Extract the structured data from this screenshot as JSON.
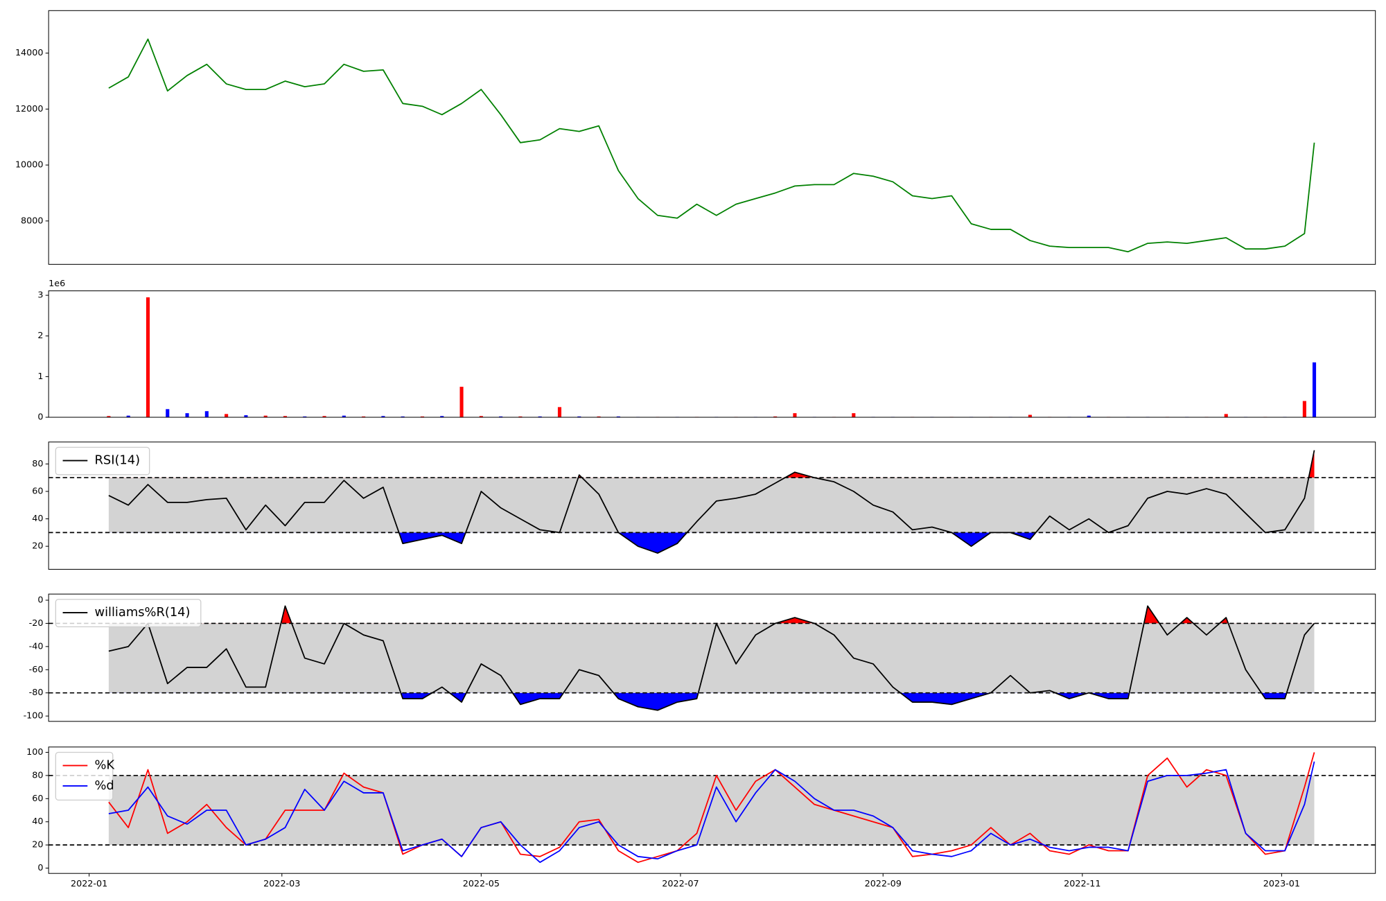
{
  "chart_data": [
    {
      "type": "line",
      "xlim": [
        -12.4,
        393.7
      ],
      "ylim": [
        6450,
        15520
      ],
      "yticks": [
        8000,
        10000,
        12000,
        14000
      ],
      "color": "green",
      "x": [
        6,
        12,
        18,
        24,
        30,
        36,
        42,
        48,
        54,
        60,
        66,
        72,
        78,
        84,
        90,
        96,
        102,
        108,
        114,
        120,
        126,
        132,
        138,
        144,
        150,
        156,
        162,
        168,
        174,
        180,
        186,
        192,
        198,
        204,
        210,
        216,
        222,
        228,
        234,
        240,
        246,
        252,
        258,
        264,
        270,
        276,
        282,
        288,
        294,
        300,
        306,
        312,
        318,
        324,
        330,
        336,
        342,
        348,
        354,
        360,
        366,
        372,
        375
      ],
      "values": [
        12750,
        13150,
        14500,
        12650,
        13200,
        13600,
        12900,
        12700,
        12700,
        13000,
        12800,
        12900,
        13600,
        13350,
        13400,
        12200,
        12100,
        11800,
        12200,
        12700,
        11800,
        10800,
        10900,
        11300,
        11200,
        11400,
        9800,
        8800,
        8200,
        8100,
        8600,
        8200,
        8600,
        8800,
        9000,
        9250,
        9300,
        9300,
        9700,
        9600,
        9400,
        8900,
        8800,
        8900,
        7900,
        7700,
        7700,
        7300,
        7100,
        7050,
        7050,
        7050,
        6900,
        7200,
        7250,
        7200,
        7300,
        7400,
        7000,
        7000,
        7100,
        7550,
        10800
      ]
    },
    {
      "type": "bar",
      "xlim": [
        -12.4,
        393.7
      ],
      "ylim": [
        0,
        3.11
      ],
      "yticks": [
        0,
        1,
        2,
        3
      ],
      "offset_label": "1e6",
      "x": [
        6,
        12,
        18,
        24,
        30,
        36,
        42,
        48,
        54,
        60,
        66,
        72,
        78,
        84,
        90,
        96,
        102,
        108,
        114,
        120,
        126,
        132,
        138,
        144,
        150,
        156,
        162,
        168,
        174,
        180,
        186,
        192,
        198,
        204,
        210,
        216,
        222,
        228,
        234,
        240,
        246,
        252,
        258,
        264,
        270,
        276,
        282,
        288,
        294,
        300,
        306,
        312,
        318,
        324,
        330,
        336,
        342,
        348,
        354,
        360,
        366,
        372,
        375
      ],
      "values": [
        0.03,
        0.04,
        2.95,
        0.2,
        0.1,
        0.15,
        0.08,
        0.05,
        0.04,
        0.03,
        0.02,
        0.03,
        0.04,
        0.02,
        0.03,
        0.02,
        0.02,
        0.03,
        0.75,
        0.03,
        0.02,
        0.02,
        0.02,
        0.25,
        0.02,
        0.02,
        0.02,
        0.01,
        0.01,
        0.01,
        0.01,
        0.01,
        0.01,
        0.01,
        0.02,
        0.1,
        0.01,
        0.01,
        0.1,
        0.01,
        0.01,
        0.01,
        0.01,
        0.01,
        0.01,
        0.01,
        0.01,
        0.06,
        0.01,
        0.01,
        0.04,
        0.01,
        0.01,
        0.01,
        0.01,
        0.01,
        0.01,
        0.08,
        0.01,
        0.01,
        0.01,
        0.4,
        1.35
      ],
      "colors": [
        "red",
        "blue",
        "red",
        "blue",
        "blue",
        "blue",
        "red",
        "blue",
        "red",
        "red",
        "blue",
        "red",
        "blue",
        "red",
        "blue",
        "blue",
        "red",
        "blue",
        "red",
        "red",
        "blue",
        "red",
        "blue",
        "red",
        "blue",
        "red",
        "blue",
        "blue",
        "red",
        "blue",
        "red",
        "blue",
        "red",
        "blue",
        "red",
        "red",
        "blue",
        "red",
        "red",
        "blue",
        "blue",
        "red",
        "blue",
        "red",
        "blue",
        "red",
        "blue",
        "red",
        "red",
        "blue",
        "blue",
        "red",
        "blue",
        "blue",
        "red",
        "blue",
        "red",
        "red",
        "blue",
        "red",
        "blue",
        "red",
        "blue"
      ]
    },
    {
      "type": "line",
      "xlim": [
        -12.4,
        393.7
      ],
      "ylim": [
        3.2,
        96
      ],
      "yticks": [
        20,
        40,
        60,
        80
      ],
      "thresholds": [
        30,
        70
      ],
      "band_color": "lightgray",
      "overbought_color": "red",
      "oversold_color": "blue",
      "legend": "upper left",
      "x": [
        6,
        12,
        18,
        24,
        30,
        36,
        42,
        48,
        54,
        60,
        66,
        72,
        78,
        84,
        90,
        96,
        102,
        108,
        114,
        120,
        126,
        132,
        138,
        144,
        150,
        156,
        162,
        168,
        174,
        180,
        186,
        192,
        198,
        204,
        210,
        216,
        222,
        228,
        234,
        240,
        246,
        252,
        258,
        264,
        270,
        276,
        282,
        288,
        294,
        300,
        306,
        312,
        318,
        324,
        330,
        336,
        342,
        348,
        354,
        360,
        366,
        372,
        375
      ],
      "series": [
        {
          "name": "RSI(14)",
          "color": "black",
          "values": [
            57,
            50,
            65,
            52,
            52,
            54,
            55,
            32,
            50,
            35,
            52,
            52,
            68,
            55,
            63,
            22,
            25,
            28,
            22,
            60,
            48,
            40,
            32,
            30,
            72,
            58,
            30,
            20,
            15,
            22,
            38,
            53,
            55,
            58,
            66,
            74,
            70,
            67,
            60,
            50,
            45,
            32,
            34,
            30,
            20,
            30,
            30,
            25,
            42,
            32,
            40,
            30,
            35,
            55,
            60,
            58,
            62,
            58,
            44,
            30,
            32,
            55,
            90
          ]
        }
      ]
    },
    {
      "type": "line",
      "xlim": [
        -12.4,
        393.7
      ],
      "ylim": [
        -104.6,
        5.3
      ],
      "yticks": [
        -100,
        -80,
        -60,
        -40,
        -20,
        0
      ],
      "thresholds": [
        -80,
        -20
      ],
      "band_color": "lightgray",
      "overbought_color": "red",
      "oversold_color": "blue",
      "legend": "upper left",
      "x": [
        6,
        12,
        18,
        24,
        30,
        36,
        42,
        48,
        54,
        60,
        66,
        72,
        78,
        84,
        90,
        96,
        102,
        108,
        114,
        120,
        126,
        132,
        138,
        144,
        150,
        156,
        162,
        168,
        174,
        180,
        186,
        192,
        198,
        204,
        210,
        216,
        222,
        228,
        234,
        240,
        246,
        252,
        258,
        264,
        270,
        276,
        282,
        288,
        294,
        300,
        306,
        312,
        318,
        324,
        330,
        336,
        342,
        348,
        354,
        360,
        366,
        372,
        375
      ],
      "series": [
        {
          "name": "williams%R(14)",
          "color": "black",
          "values": [
            -44,
            -40,
            -20,
            -72,
            -58,
            -58,
            -42,
            -75,
            -75,
            -5,
            -50,
            -55,
            -20,
            -30,
            -35,
            -85,
            -85,
            -75,
            -88,
            -55,
            -65,
            -90,
            -85,
            -85,
            -60,
            -65,
            -85,
            -92,
            -95,
            -88,
            -85,
            -20,
            -55,
            -30,
            -20,
            -15,
            -20,
            -30,
            -50,
            -55,
            -75,
            -88,
            -88,
            -90,
            -85,
            -80,
            -65,
            -80,
            -78,
            -85,
            -80,
            -85,
            -85,
            -5,
            -30,
            -15,
            -30,
            -15,
            -60,
            -85,
            -85,
            -30,
            -20
          ]
        }
      ]
    },
    {
      "type": "line",
      "xlim": [
        -12.4,
        393.7
      ],
      "ylim": [
        -4.6,
        104.6
      ],
      "yticks": [
        0,
        20,
        40,
        60,
        80,
        100
      ],
      "thresholds": [
        20,
        80
      ],
      "band_color": "lightgray",
      "legend": "upper left",
      "xticks": [
        {
          "value": 0,
          "label": "2022-01"
        },
        {
          "value": 59,
          "label": "2022-03"
        },
        {
          "value": 120,
          "label": "2022-05"
        },
        {
          "value": 181,
          "label": "2022-07"
        },
        {
          "value": 243,
          "label": "2022-09"
        },
        {
          "value": 304,
          "label": "2022-11"
        },
        {
          "value": 365,
          "label": "2023-01"
        }
      ],
      "x": [
        6,
        12,
        18,
        24,
        30,
        36,
        42,
        48,
        54,
        60,
        66,
        72,
        78,
        84,
        90,
        96,
        102,
        108,
        114,
        120,
        126,
        132,
        138,
        144,
        150,
        156,
        162,
        168,
        174,
        180,
        186,
        192,
        198,
        204,
        210,
        216,
        222,
        228,
        234,
        240,
        246,
        252,
        258,
        264,
        270,
        276,
        282,
        288,
        294,
        300,
        306,
        312,
        318,
        324,
        330,
        336,
        342,
        348,
        354,
        360,
        366,
        372,
        375
      ],
      "series": [
        {
          "name": "%K",
          "color": "red",
          "values": [
            57,
            35,
            85,
            30,
            40,
            55,
            35,
            20,
            25,
            50,
            50,
            50,
            82,
            70,
            65,
            12,
            20,
            25,
            10,
            35,
            40,
            12,
            10,
            18,
            40,
            42,
            15,
            5,
            10,
            15,
            30,
            80,
            50,
            75,
            85,
            70,
            55,
            50,
            45,
            40,
            35,
            10,
            12,
            15,
            20,
            35,
            20,
            30,
            15,
            12,
            20,
            15,
            15,
            80,
            95,
            70,
            85,
            80,
            30,
            12,
            15,
            70,
            100
          ]
        },
        {
          "name": "%d",
          "color": "blue",
          "values": [
            47,
            50,
            70,
            45,
            38,
            50,
            50,
            20,
            25,
            35,
            68,
            50,
            75,
            65,
            65,
            15,
            20,
            25,
            10,
            35,
            40,
            20,
            5,
            15,
            35,
            40,
            20,
            10,
            8,
            15,
            20,
            70,
            40,
            65,
            85,
            75,
            60,
            50,
            50,
            45,
            35,
            15,
            12,
            10,
            15,
            30,
            20,
            25,
            18,
            15,
            18,
            18,
            15,
            75,
            80,
            80,
            82,
            85,
            30,
            15,
            15,
            55,
            92
          ]
        }
      ]
    }
  ]
}
